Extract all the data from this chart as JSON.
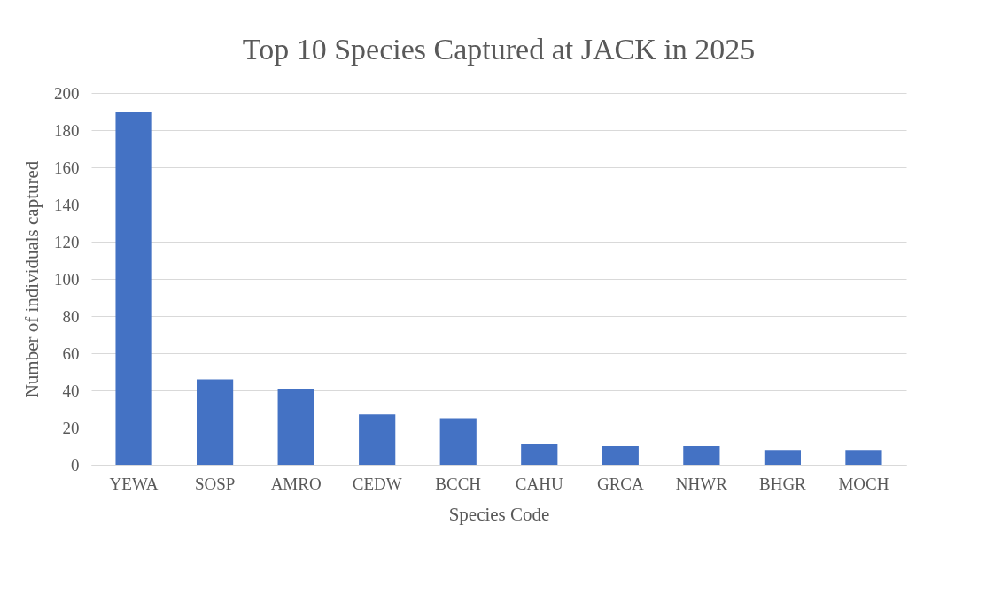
{
  "chart_data": {
    "type": "bar",
    "title": "Top 10 Species Captured at JACK in 2025",
    "xlabel": "Species Code",
    "ylabel": "Number of individuals captured",
    "categories": [
      "YEWA",
      "SOSP",
      "AMRO",
      "CEDW",
      "BCCH",
      "CAHU",
      "GRCA",
      "NHWR",
      "BHGR",
      "MOCH"
    ],
    "values": [
      190,
      46,
      41,
      27,
      25,
      11,
      10,
      10,
      8,
      8
    ],
    "color": "#4472c4",
    "ylim": [
      0,
      200
    ],
    "yticks": [
      0,
      20,
      40,
      60,
      80,
      100,
      120,
      140,
      160,
      180,
      200
    ],
    "grid": "y"
  }
}
